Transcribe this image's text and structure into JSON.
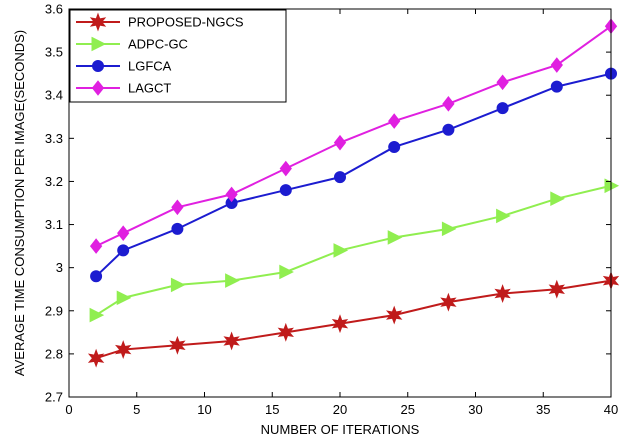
{
  "chart_data": {
    "type": "line",
    "xlabel": "NUMBER OF ITERATIONS",
    "ylabel": "AVERAGE TIME CONSUMPTION PER IMAGE(SECONDS)",
    "xlim": [
      0,
      40
    ],
    "ylim": [
      2.7,
      3.6
    ],
    "xticks": [
      0,
      5,
      10,
      15,
      20,
      25,
      30,
      35,
      40
    ],
    "xtick_labels": [
      "0",
      "5",
      "10",
      "15",
      "20",
      "25",
      "30",
      "35",
      "40"
    ],
    "yticks": [
      2.7,
      2.8,
      2.9,
      3.0,
      3.1,
      3.2,
      3.3,
      3.4,
      3.5,
      3.6
    ],
    "ytick_labels": [
      "2.7",
      "2.8",
      "2.9",
      "3",
      "3.1",
      "3.2",
      "3.3",
      "3.4",
      "3.5",
      "3.6"
    ],
    "grid": false,
    "legend_position": "top-left",
    "x": [
      2,
      4,
      8,
      12,
      16,
      20,
      24,
      28,
      32,
      36,
      40
    ],
    "series": [
      {
        "name": "PROPOSED-NGCS",
        "color": "#c01b1b",
        "marker": "hexagram",
        "values": [
          2.79,
          2.81,
          2.82,
          2.83,
          2.85,
          2.87,
          2.89,
          2.92,
          2.94,
          2.95,
          2.97
        ]
      },
      {
        "name": "ADPC-GC",
        "color": "#90ee50",
        "marker": "triangle-right",
        "values": [
          2.89,
          2.93,
          2.96,
          2.97,
          2.99,
          3.04,
          3.07,
          3.09,
          3.12,
          3.16,
          3.19
        ]
      },
      {
        "name": "LGFCA",
        "color": "#1c1cd0",
        "marker": "circle",
        "values": [
          2.98,
          3.04,
          3.09,
          3.15,
          3.18,
          3.21,
          3.28,
          3.32,
          3.37,
          3.42,
          3.45
        ]
      },
      {
        "name": "LAGCT",
        "color": "#e020e0",
        "marker": "diamond",
        "values": [
          3.05,
          3.08,
          3.14,
          3.17,
          3.23,
          3.29,
          3.34,
          3.38,
          3.43,
          3.47,
          3.56
        ]
      }
    ]
  }
}
